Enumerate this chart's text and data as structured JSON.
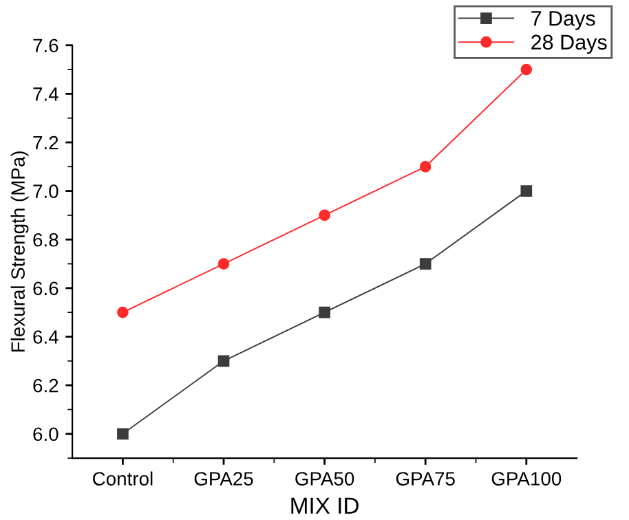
{
  "chart_data": {
    "type": "line",
    "xlabel": "MIX ID",
    "ylabel": "Flexural Strength (MPa)",
    "categories": [
      "Control",
      "GPA25",
      "GPA50",
      "GPA75",
      "GPA100"
    ],
    "series": [
      {
        "name": "7 Days",
        "color": "#3c3c3c",
        "marker": "square",
        "values": [
          6.0,
          6.3,
          6.5,
          6.7,
          7.0
        ]
      },
      {
        "name": "28 Days",
        "color": "#ff2a2a",
        "marker": "circle",
        "values": [
          6.5,
          6.7,
          6.9,
          7.1,
          7.5
        ]
      }
    ],
    "ylim": [
      5.9,
      7.6
    ],
    "yticks": [
      {
        "value": 6,
        "label": "6.0"
      },
      6.2,
      6.4,
      6.6,
      6.8,
      {
        "value": 7,
        "label": "7.0"
      },
      7.2,
      7.4,
      7.6
    ],
    "grid": false,
    "legend": "top right",
    "line_style": "solid"
  }
}
